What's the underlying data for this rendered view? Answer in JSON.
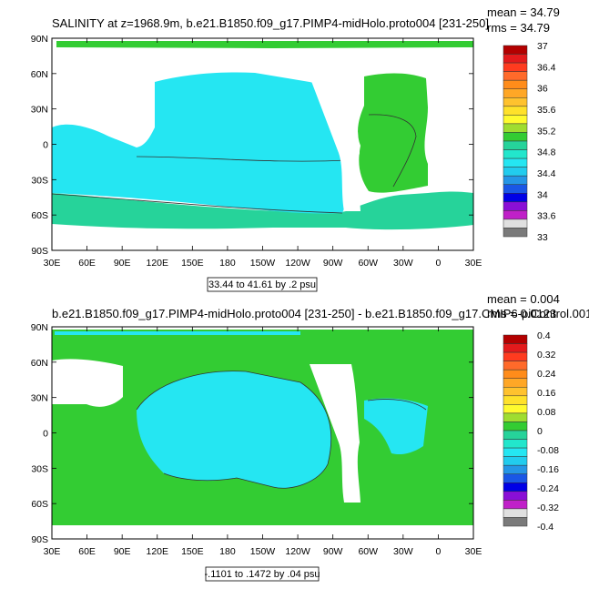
{
  "chart_data": [
    {
      "type": "heatmap",
      "title": "SALINITY at z=1968.9m, b.e21.B1850.f09_g17.PIMP4-midHolo.proto004 [231-250]",
      "stats": [
        "mean = 34.79",
        "rms = 34.79"
      ],
      "subtitle": "33.44 to 41.61 by .2 psu",
      "x_ticks": [
        "30E",
        "60E",
        "90E",
        "120E",
        "150E",
        "180",
        "150W",
        "120W",
        "90W",
        "60W",
        "30W",
        "0",
        "30E"
      ],
      "y_ticks": [
        "90N",
        "60N",
        "30N",
        "0",
        "30S",
        "60S",
        "90S"
      ],
      "xlim": [
        30,
        390
      ],
      "ylim": [
        -90,
        90
      ],
      "colorbar": {
        "labels": [
          "37",
          "36.4",
          "36",
          "35.6",
          "35.2",
          "34.8",
          "34.4",
          "34",
          "33.6",
          "33"
        ],
        "colors": [
          "#b30000",
          "#e31a1c",
          "#ff3b1f",
          "#ff6a2a",
          "#ff8c1a",
          "#ffa726",
          "#ffc22e",
          "#ffe12a",
          "#fffb2e",
          "#9fdd30",
          "#33cc33",
          "#26d39a",
          "#22e6cc",
          "#25e6f2",
          "#22ccee",
          "#2596e6",
          "#1a57e6",
          "#0000e6",
          "#8a0fd6",
          "#c020c8",
          "#e0e0e0",
          "#7a7a7a"
        ]
      },
      "regions": [
        {
          "name": "atlantic-high",
          "value": 35.2,
          "color": "#33cc33"
        },
        {
          "name": "pacific-indian",
          "value": 34.8,
          "color": "#25e6f2"
        },
        {
          "name": "southern-ocean",
          "value": 34.6,
          "color": "#26d39a"
        }
      ]
    },
    {
      "type": "heatmap",
      "title": "b.e21.B1850.f09_g17.PIMP4-midHolo.proto004 [231-250] - b.e21.B1850.f09_g17.CMIP6-piControl.001 [",
      "stats": [
        "mean = 0.004",
        "rms = 0.0123"
      ],
      "subtitle": "-.1101 to .1472 by .04 psu",
      "x_ticks": [
        "30E",
        "60E",
        "90E",
        "120E",
        "150E",
        "180",
        "150W",
        "120W",
        "90W",
        "60W",
        "30W",
        "0",
        "30E"
      ],
      "y_ticks": [
        "90N",
        "60N",
        "30N",
        "0",
        "30S",
        "60S",
        "90S"
      ],
      "xlim": [
        30,
        390
      ],
      "ylim": [
        -90,
        90
      ],
      "colorbar": {
        "labels": [
          "0.4",
          "0.32",
          "0.24",
          "0.16",
          "0.08",
          "0",
          "-0.08",
          "-0.16",
          "-0.24",
          "-0.32",
          "-0.4"
        ],
        "colors": [
          "#b30000",
          "#e31a1c",
          "#ff3b1f",
          "#ff6a2a",
          "#ff8c1a",
          "#ffa726",
          "#ffc22e",
          "#ffe12a",
          "#fffb2e",
          "#9fdd30",
          "#33cc33",
          "#26d39a",
          "#22e6cc",
          "#25e6f2",
          "#22ccee",
          "#2596e6",
          "#1a57e6",
          "#0000e6",
          "#8a0fd6",
          "#c020c8",
          "#e0e0e0",
          "#7a7a7a"
        ]
      },
      "regions": [
        {
          "name": "positive-anomaly",
          "value": 0.04,
          "color": "#33cc33"
        },
        {
          "name": "negative-anomaly",
          "value": -0.04,
          "color": "#25e6f2"
        }
      ]
    }
  ]
}
